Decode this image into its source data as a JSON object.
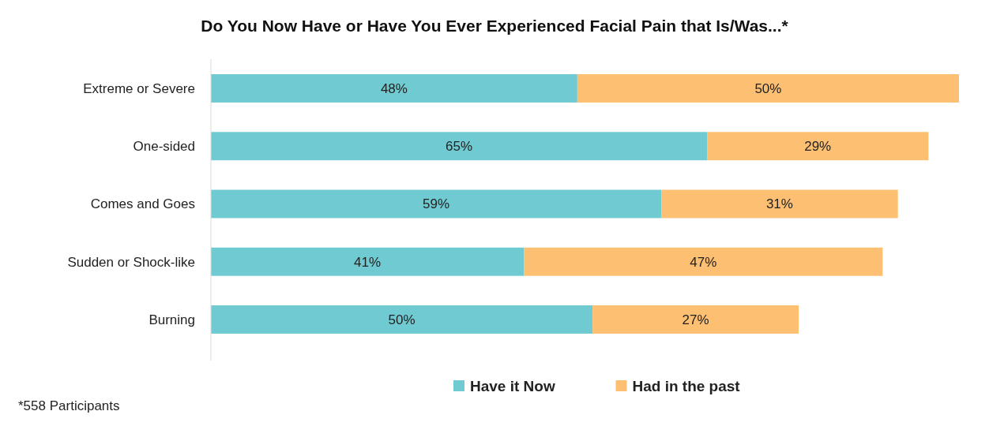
{
  "chart_data": {
    "type": "bar",
    "orientation": "horizontal",
    "stacked": true,
    "title": "Do You Now Have or Have You Ever Experienced Facial Pain that Is/Was...*",
    "categories": [
      "Extreme or Severe",
      "One-sided",
      "Comes and Goes",
      "Sudden or Shock-like",
      "Burning"
    ],
    "series": [
      {
        "name": "Have it Now",
        "color": "#70cad1",
        "values": [
          48,
          65,
          59,
          41,
          50
        ],
        "value_labels": [
          "48%",
          "65%",
          "59%",
          "41%",
          "50%"
        ]
      },
      {
        "name": "Had in the past",
        "color": "#fdbf71",
        "values": [
          50,
          29,
          31,
          47,
          27
        ],
        "value_labels": [
          "50%",
          "29%",
          "31%",
          "47%",
          "27%"
        ]
      }
    ],
    "legend": "bottom",
    "annotations": [
      "*558 Participants"
    ]
  }
}
